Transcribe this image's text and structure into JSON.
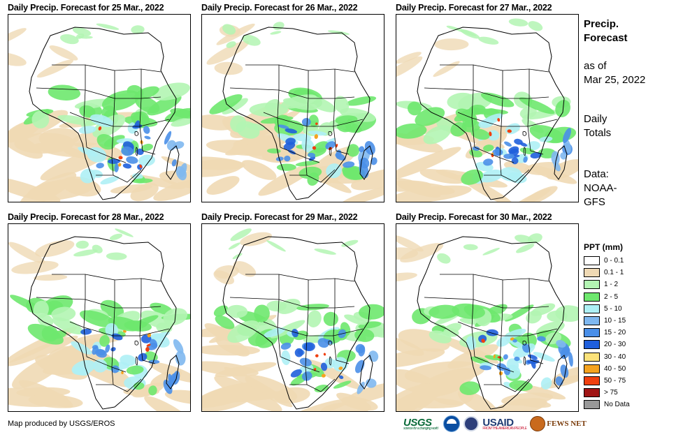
{
  "panels": [
    {
      "title": "Daily Precip. Forecast for 25 Mar., 2022"
    },
    {
      "title": "Daily Precip. Forecast for 26 Mar., 2022"
    },
    {
      "title": "Daily Precip. Forecast for 27 Mar., 2022"
    },
    {
      "title": "Daily Precip. Forecast for 28 Mar., 2022"
    },
    {
      "title": "Daily Precip. Forecast for 29 Mar., 2022"
    },
    {
      "title": "Daily Precip. Forecast for 30 Mar., 2022"
    }
  ],
  "side": {
    "title_line1": "Precip.",
    "title_line2": "Forecast",
    "asof_line1": "as of",
    "asof_line2": "Mar 25, 2022",
    "totals_line1": "Daily",
    "totals_line2": "Totals",
    "data_line1": "Data:",
    "data_line2": "NOAA-",
    "data_line3": "GFS"
  },
  "legend": {
    "title": "PPT (mm)",
    "items": [
      {
        "label": "0 - 0.1",
        "color": "#ffffff"
      },
      {
        "label": "0.1 - 1",
        "color": "#efd9b4"
      },
      {
        "label": "1 - 2",
        "color": "#b3f5b3"
      },
      {
        "label": "2 - 5",
        "color": "#6ee86e"
      },
      {
        "label": "5 - 10",
        "color": "#aef0f5"
      },
      {
        "label": "10 - 15",
        "color": "#7fb8f0"
      },
      {
        "label": "15 - 20",
        "color": "#4a8fe8"
      },
      {
        "label": "20 - 30",
        "color": "#1f5fdc"
      },
      {
        "label": "30 - 40",
        "color": "#fbe27a"
      },
      {
        "label": "40 - 50",
        "color": "#f5a31f"
      },
      {
        "label": "50 - 75",
        "color": "#f0400f"
      },
      {
        "label": "> 75",
        "color": "#a01515"
      },
      {
        "label": "No Data",
        "color": "#999999"
      }
    ]
  },
  "footer": {
    "credit": "Map produced by USGS/EROS",
    "logo_usgs": "USGS",
    "logo_usgs_tagline": "science for a changing world",
    "logo_usaid": "USAID",
    "logo_usaid_tagline": "FROM THE AMERICAN PEOPLE",
    "logo_fews": "FEWS NET"
  }
}
